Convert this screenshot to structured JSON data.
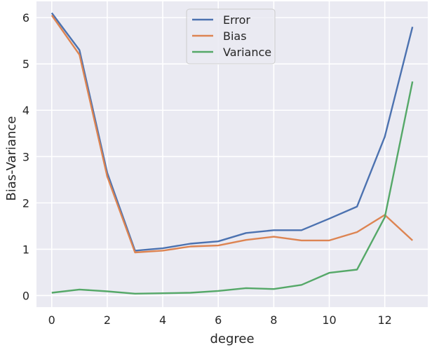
{
  "chart_data": {
    "type": "line",
    "title": "",
    "xlabel": "degree",
    "ylabel": "Bias-Variance",
    "xlim": [
      -0.55,
      13.55
    ],
    "ylim": [
      -0.25,
      6.35
    ],
    "xticks": [
      0,
      2,
      4,
      6,
      8,
      10,
      12
    ],
    "yticks": [
      0,
      1,
      2,
      3,
      4,
      5,
      6
    ],
    "grid": true,
    "legend_position": "upper center",
    "x": [
      0,
      1,
      2,
      3,
      4,
      5,
      6,
      7,
      8,
      9,
      10,
      11,
      12,
      13
    ],
    "series": [
      {
        "name": "Error",
        "color": "#4c72b0",
        "values": [
          6.1,
          5.3,
          2.65,
          0.97,
          1.02,
          1.12,
          1.17,
          1.35,
          1.41,
          1.41,
          1.66,
          1.92,
          3.43,
          5.8
        ]
      },
      {
        "name": "Bias",
        "color": "#dd8452",
        "values": [
          6.05,
          5.2,
          2.57,
          0.93,
          0.97,
          1.06,
          1.08,
          1.2,
          1.27,
          1.19,
          1.19,
          1.37,
          1.74,
          1.19
        ]
      },
      {
        "name": "Variance",
        "color": "#55a868",
        "values": [
          0.06,
          0.13,
          0.09,
          0.04,
          0.05,
          0.06,
          0.1,
          0.16,
          0.14,
          0.23,
          0.49,
          0.56,
          1.69,
          4.62
        ]
      }
    ]
  }
}
